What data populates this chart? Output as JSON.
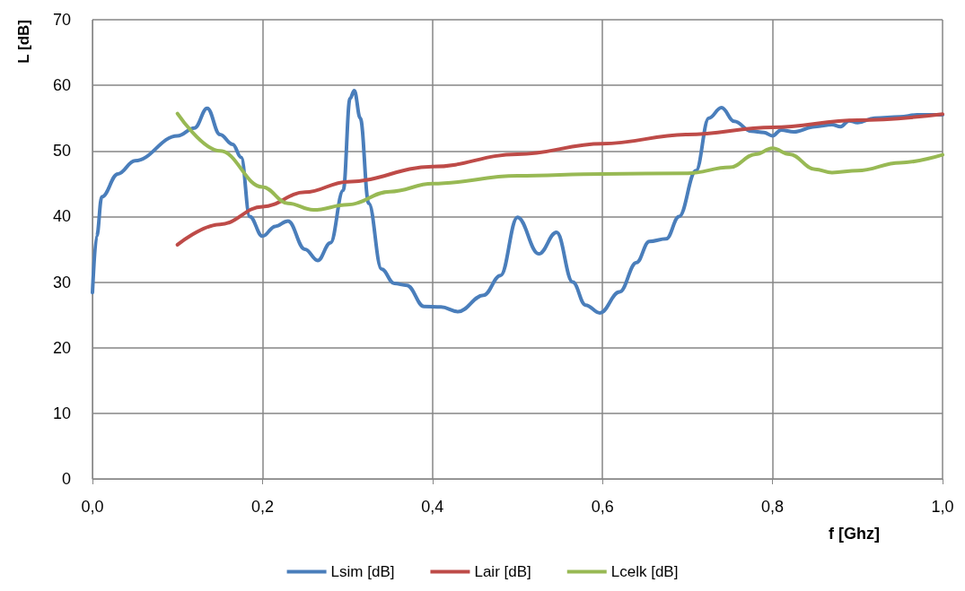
{
  "chart_data": {
    "type": "line",
    "xlabel": "f [Ghz]",
    "ylabel": "L [dB]",
    "xlim": [
      0,
      1
    ],
    "xticks": [
      {
        "value": 0,
        "label": "0,0"
      },
      {
        "value": 0.2,
        "label": "0,2"
      },
      {
        "value": 0.4,
        "label": "0,4"
      },
      {
        "value": 0.6,
        "label": "0,6"
      },
      {
        "value": 0.8,
        "label": "0,8"
      },
      {
        "value": 1,
        "label": "1,0"
      }
    ],
    "ylim": [
      0,
      70
    ],
    "yticks": [
      0,
      10,
      20,
      30,
      40,
      50,
      60,
      70
    ],
    "grid": true,
    "legend": "bottom",
    "marker": "none",
    "line_style": "solid",
    "series": [
      {
        "name": "Lsim [dB]",
        "color": "#4a7ebb",
        "x": [
          0,
          0.005,
          0.011,
          0.03,
          0.05,
          0.1,
          0.12,
          0.135,
          0.15,
          0.165,
          0.175,
          0.185,
          0.2,
          0.215,
          0.23,
          0.25,
          0.265,
          0.28,
          0.295,
          0.303,
          0.308,
          0.315,
          0.325,
          0.34,
          0.355,
          0.37,
          0.39,
          0.41,
          0.43,
          0.46,
          0.48,
          0.5,
          0.525,
          0.546,
          0.565,
          0.58,
          0.597,
          0.62,
          0.64,
          0.655,
          0.675,
          0.69,
          0.71,
          0.725,
          0.74,
          0.755,
          0.775,
          0.79,
          0.8,
          0.81,
          0.825,
          0.85,
          0.87,
          0.88,
          0.89,
          0.9,
          0.92,
          0.95,
          0.97,
          1
        ],
        "values": [
          28.4,
          37,
          43,
          46.5,
          48.5,
          52.3,
          53.5,
          56.5,
          52.5,
          51,
          49,
          40,
          37,
          38.5,
          39.3,
          35,
          33.3,
          36,
          44,
          58,
          59.2,
          55,
          42,
          32,
          29.8,
          29.5,
          26.3,
          26.2,
          25.5,
          28,
          31,
          39.9,
          34.3,
          37.6,
          30,
          26.5,
          25.3,
          28.5,
          33,
          36.2,
          36.6,
          40,
          47,
          55,
          56.6,
          54.5,
          53,
          52.8,
          52.3,
          53.2,
          52.9,
          53.7,
          54,
          53.7,
          54.6,
          54.3,
          55,
          55.2,
          55.5,
          55.5
        ]
      },
      {
        "name": "Lair [dB]",
        "color": "#be4b48",
        "x": [
          0.1,
          0.15,
          0.2,
          0.25,
          0.3,
          0.4,
          0.5,
          0.6,
          0.7,
          0.8,
          0.9,
          1
        ],
        "values": [
          35.7,
          38.8,
          41.5,
          43.7,
          45.3,
          47.6,
          49.5,
          51.1,
          52.5,
          53.6,
          54.7,
          55.6
        ]
      },
      {
        "name": "Lcelk [dB]",
        "color": "#98b954",
        "x": [
          0.1,
          0.15,
          0.2,
          0.23,
          0.26,
          0.3,
          0.35,
          0.4,
          0.5,
          0.6,
          0.7,
          0.75,
          0.78,
          0.8,
          0.82,
          0.85,
          0.87,
          0.9,
          0.95,
          1
        ],
        "values": [
          55.7,
          50,
          44.5,
          42,
          41,
          41.8,
          43.8,
          45,
          46.2,
          46.5,
          46.6,
          47.5,
          49.5,
          50.4,
          49.5,
          47.2,
          46.7,
          47,
          48.2,
          49.4
        ]
      }
    ]
  }
}
